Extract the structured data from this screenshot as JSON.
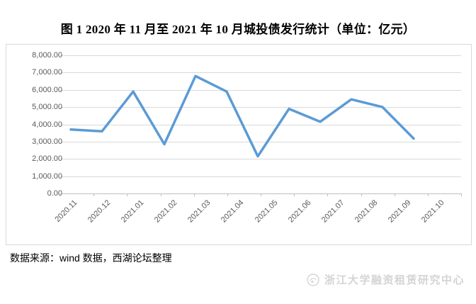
{
  "title": "图 1 2020 年 11 月至 2021 年 10 月城投债发行统计（单位：亿元）",
  "source_note": "数据来源：wind 数据，西湖论坛整理",
  "watermark": {
    "logo_icon": "research-center-emblem",
    "text": "浙江大学融资租赁研究中心"
  },
  "colors": {
    "line": "#5B9BD5",
    "gridline": "#D9D9D9",
    "axis": "#BFBFBF",
    "axis_text": "#595959",
    "watermark_text": "#D4D4D4"
  },
  "chart_data": {
    "type": "line",
    "title": "图 1 2020 年 11 月至 2021 年 10 月城投债发行统计（单位：亿元）",
    "categories": [
      "2020.11",
      "2020.12",
      "2021.01",
      "2021.02",
      "2021.03",
      "2021.04",
      "2021.05",
      "2021.06",
      "2021.07",
      "2021.08",
      "2021.09",
      "2021.10"
    ],
    "values": [
      3700,
      3600,
      5900,
      2850,
      6800,
      5900,
      2150,
      4900,
      4150,
      5450,
      5000,
      3180
    ],
    "xlabel": "",
    "ylabel": "",
    "ylim": [
      0,
      8000
    ],
    "ytick_interval": 1000,
    "ytick_labels": [
      "0.00",
      "1,000.00",
      "2,000.00",
      "3,000.00",
      "4,000.00",
      "5,000.00",
      "6,000.00",
      "7,000.00",
      "8,000.00"
    ],
    "grid": true,
    "legend": false,
    "legend_position": "none"
  }
}
